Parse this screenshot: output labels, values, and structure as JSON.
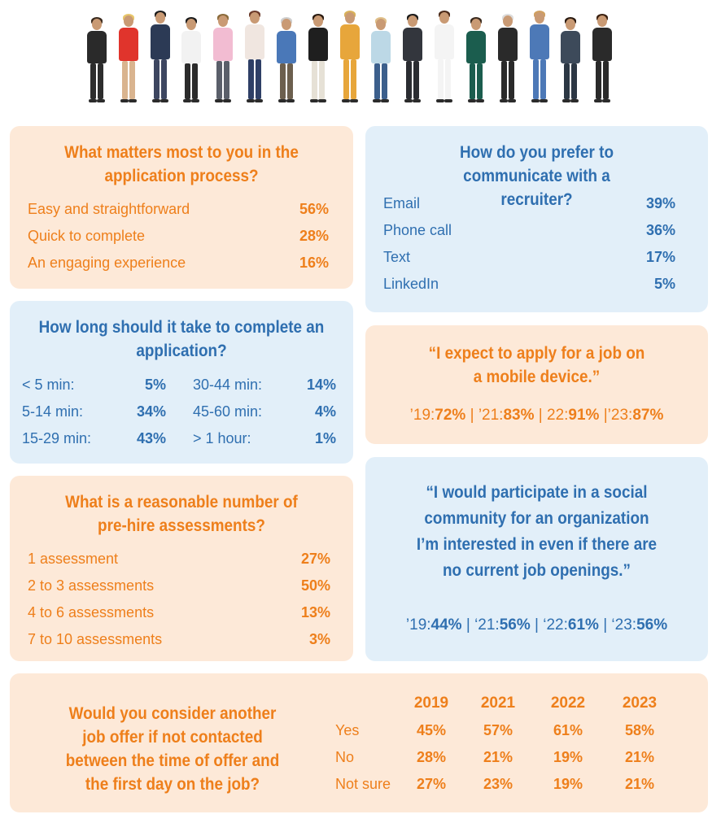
{
  "colors": {
    "peach": "#fde9d8",
    "blue_bg": "#e2eff9",
    "orange": "#ee7f1b",
    "blue": "#2f6fb0"
  },
  "header_image": {
    "icon": "people-lineup-photo"
  },
  "application_process": {
    "question": "What matters most to you in the application process?",
    "items": [
      {
        "label": "Easy and straightforward",
        "value": "56%"
      },
      {
        "label": "Quick to complete",
        "value": "28%"
      },
      {
        "label": "An engaging experience",
        "value": "16%"
      }
    ]
  },
  "recruiter": {
    "question": "How do you prefer to communicate with a recruiter?",
    "items": [
      {
        "label": "Email",
        "value": "39%"
      },
      {
        "label": "Phone call",
        "value": "36%"
      },
      {
        "label": "Text",
        "value": "17%"
      },
      {
        "label": "LinkedIn",
        "value": "5%"
      }
    ]
  },
  "duration": {
    "question": "How long should it take to complete an application?",
    "items": [
      {
        "label": "< 5 min:",
        "value": "5%"
      },
      {
        "label": "5-14 min:",
        "value": "34%"
      },
      {
        "label": "15-29 min:",
        "value": "43%"
      },
      {
        "label": "30-44 min:",
        "value": "14%"
      },
      {
        "label": "45-60 min:",
        "value": "4%"
      },
      {
        "label": "> 1 hour:",
        "value": "1%"
      }
    ]
  },
  "mobile": {
    "quote": "“I expect to apply for a job on a mobile device.”",
    "years": [
      {
        "label": "’19:",
        "value": "72%",
        "sep": " | "
      },
      {
        "label": "’21:",
        "value": "83%",
        "sep": " | "
      },
      {
        "label": "22:",
        "value": "91%",
        "sep": " |"
      },
      {
        "label": "’23:",
        "value": "87%",
        "sep": ""
      }
    ]
  },
  "assessments": {
    "question": "What is a reasonable number of pre-hire assessments?",
    "items": [
      {
        "label": "1 assessment",
        "value": "27%"
      },
      {
        "label": "2 to 3 assessments",
        "value": "50%"
      },
      {
        "label": "4 to 6 assessments",
        "value": "13%"
      },
      {
        "label": "7 to 10 assessments",
        "value": "3%"
      }
    ]
  },
  "community": {
    "quote": "“I would participate in a social community for an organization I’m interested in even if there are no current job openings.”",
    "years": [
      {
        "label": "’19:",
        "value": "44%",
        "sep": " | "
      },
      {
        "label": "‘21:",
        "value": "56%",
        "sep": " | "
      },
      {
        "label": "‘22:",
        "value": "61%",
        "sep": " | "
      },
      {
        "label": "‘23:",
        "value": "56%",
        "sep": ""
      }
    ]
  },
  "offer": {
    "question": "Would you consider another job offer if not contacted between the time of offer and the first day on the job?",
    "columns": [
      "2019",
      "2021",
      "2022",
      "2023"
    ],
    "rows": [
      {
        "label": "Yes",
        "values": [
          "45%",
          "57%",
          "61%",
          "58%"
        ]
      },
      {
        "label": "No",
        "values": [
          "28%",
          "21%",
          "19%",
          "21%"
        ]
      },
      {
        "label": "Not sure",
        "values": [
          "27%",
          "23%",
          "19%",
          "21%"
        ]
      }
    ]
  }
}
